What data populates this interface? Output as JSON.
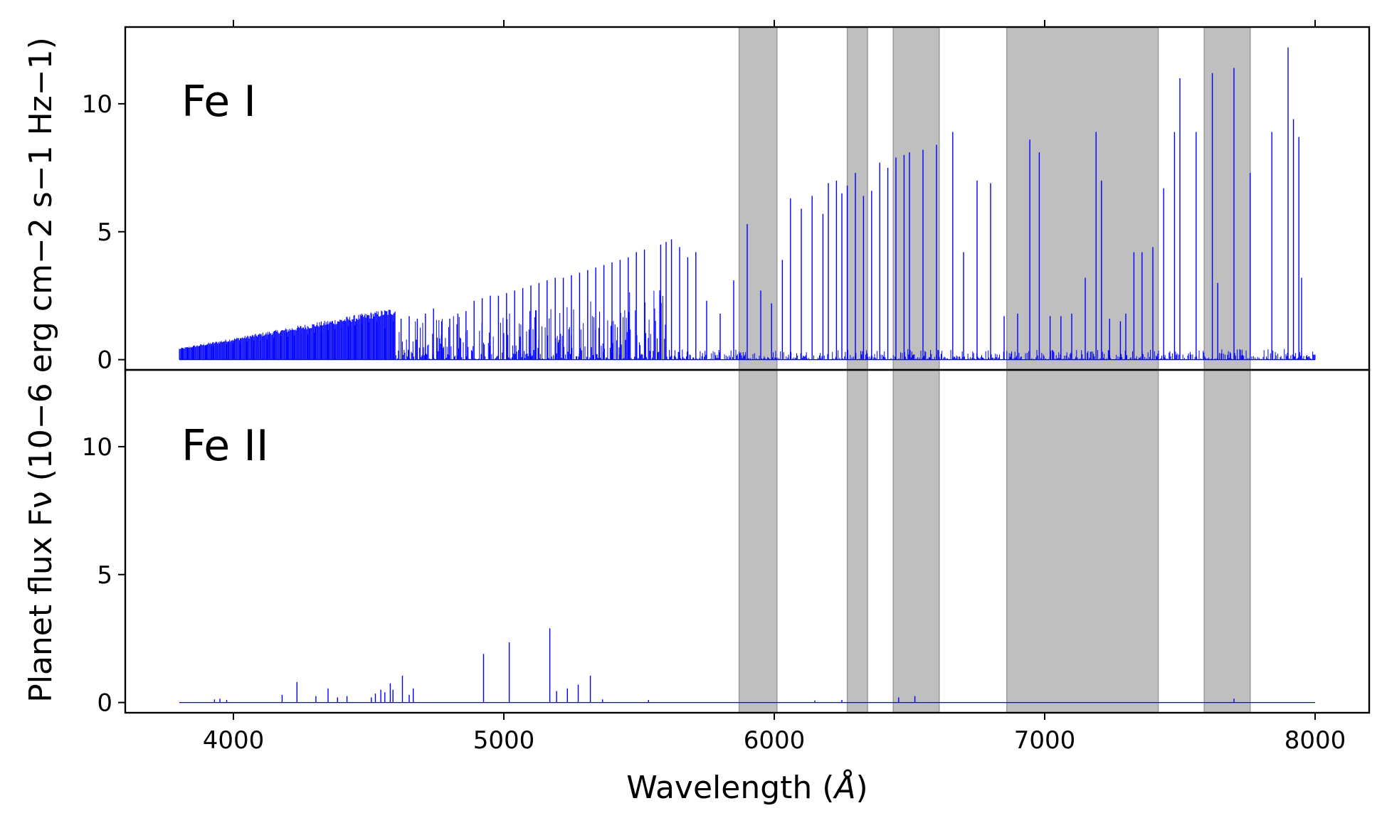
{
  "chart_data": {
    "type": "line",
    "title": "",
    "shared_x": true,
    "xlabel": "Wavelength (Å)",
    "xlabel_parts": {
      "text": "Wavelength (",
      "symbol": "Å",
      "close": ")"
    },
    "ylabel": "Planet flux Fν (10−6 erg cm−2 s−1 Hz−1)",
    "xlim": [
      3600,
      8200
    ],
    "ylim": [
      -0.4,
      13.0
    ],
    "xticks": [
      4000,
      5000,
      6000,
      7000,
      8000
    ],
    "xtick_labels": [
      "4000",
      "5000",
      "6000",
      "7000",
      "8000"
    ],
    "yticks": [
      0,
      5,
      10
    ],
    "ytick_labels": [
      "0",
      "5",
      "10"
    ],
    "line_color": "#0000ff",
    "band_color": "#bfbfbf",
    "shaded_bands": [
      [
        5870,
        6010
      ],
      [
        6270,
        6345
      ],
      [
        6440,
        6610
      ],
      [
        6860,
        7420
      ],
      [
        7590,
        7760
      ]
    ],
    "panels": [
      {
        "label": "Fe I",
        "x_range": [
          3800,
          8000
        ],
        "peaks": [
          [
            3810,
            0.45
          ],
          [
            3830,
            0.45
          ],
          [
            3850,
            0.5
          ],
          [
            3875,
            0.5
          ],
          [
            3900,
            0.55
          ],
          [
            3925,
            0.55
          ],
          [
            3950,
            0.6
          ],
          [
            3975,
            0.6
          ],
          [
            4000,
            0.65
          ],
          [
            4025,
            0.65
          ],
          [
            4050,
            0.7
          ],
          [
            4075,
            0.75
          ],
          [
            4100,
            0.75
          ],
          [
            4125,
            0.8
          ],
          [
            4150,
            0.85
          ],
          [
            4175,
            0.9
          ],
          [
            4200,
            0.9
          ],
          [
            4225,
            0.95
          ],
          [
            4250,
            1.0
          ],
          [
            4275,
            1.0
          ],
          [
            4300,
            1.05
          ],
          [
            4325,
            1.1
          ],
          [
            4350,
            1.15
          ],
          [
            4375,
            1.2
          ],
          [
            4400,
            1.25
          ],
          [
            4425,
            1.3
          ],
          [
            4450,
            1.35
          ],
          [
            4475,
            1.4
          ],
          [
            4500,
            1.45
          ],
          [
            4530,
            1.5
          ],
          [
            4560,
            1.2
          ],
          [
            4590,
            1.5
          ],
          [
            4620,
            1.6
          ],
          [
            4650,
            1.7
          ],
          [
            4680,
            1.6
          ],
          [
            4710,
            1.8
          ],
          [
            4740,
            2.0
          ],
          [
            4770,
            1.5
          ],
          [
            4800,
            1.6
          ],
          [
            4830,
            1.8
          ],
          [
            4860,
            1.9
          ],
          [
            4890,
            2.3
          ],
          [
            4920,
            2.4
          ],
          [
            4950,
            2.5
          ],
          [
            4980,
            2.5
          ],
          [
            5010,
            2.6
          ],
          [
            5040,
            2.7
          ],
          [
            5070,
            2.8
          ],
          [
            5100,
            2.9
          ],
          [
            5130,
            3.0
          ],
          [
            5160,
            3.1
          ],
          [
            5190,
            3.2
          ],
          [
            5220,
            3.2
          ],
          [
            5250,
            3.3
          ],
          [
            5280,
            3.4
          ],
          [
            5310,
            3.5
          ],
          [
            5340,
            3.6
          ],
          [
            5370,
            3.7
          ],
          [
            5400,
            3.8
          ],
          [
            5430,
            3.9
          ],
          [
            5460,
            4.0
          ],
          [
            5490,
            4.2
          ],
          [
            5520,
            4.3
          ],
          [
            5580,
            4.5
          ],
          [
            5600,
            4.6
          ],
          [
            5620,
            4.7
          ],
          [
            5650,
            4.4
          ],
          [
            5680,
            4.0
          ],
          [
            5710,
            4.2
          ],
          [
            5750,
            2.3
          ],
          [
            5800,
            1.8
          ],
          [
            5850,
            3.1
          ],
          [
            5900,
            5.3
          ],
          [
            5950,
            2.7
          ],
          [
            5990,
            2.2
          ],
          [
            6030,
            3.9
          ],
          [
            6060,
            6.3
          ],
          [
            6100,
            5.9
          ],
          [
            6140,
            6.4
          ],
          [
            6180,
            5.7
          ],
          [
            6200,
            6.9
          ],
          [
            6230,
            7.0
          ],
          [
            6250,
            6.5
          ],
          [
            6270,
            6.8
          ],
          [
            6300,
            7.3
          ],
          [
            6330,
            6.4
          ],
          [
            6360,
            6.6
          ],
          [
            6390,
            7.7
          ],
          [
            6420,
            7.5
          ],
          [
            6450,
            7.9
          ],
          [
            6480,
            8.0
          ],
          [
            6500,
            8.1
          ],
          [
            6550,
            8.2
          ],
          [
            6600,
            8.4
          ],
          [
            6660,
            8.9
          ],
          [
            6700,
            4.2
          ],
          [
            6750,
            7.0
          ],
          [
            6800,
            6.9
          ],
          [
            6850,
            1.7
          ],
          [
            6900,
            1.8
          ],
          [
            6945,
            8.6
          ],
          [
            6980,
            8.1
          ],
          [
            7020,
            1.7
          ],
          [
            7060,
            1.7
          ],
          [
            7100,
            1.8
          ],
          [
            7150,
            3.2
          ],
          [
            7190,
            8.9
          ],
          [
            7210,
            7.0
          ],
          [
            7240,
            1.6
          ],
          [
            7280,
            1.5
          ],
          [
            7300,
            1.8
          ],
          [
            7330,
            4.2
          ],
          [
            7360,
            4.2
          ],
          [
            7400,
            4.4
          ],
          [
            7440,
            6.7
          ],
          [
            7480,
            8.9
          ],
          [
            7500,
            11.0
          ],
          [
            7560,
            8.9
          ],
          [
            7620,
            11.2
          ],
          [
            7640,
            3.0
          ],
          [
            7700,
            11.4
          ],
          [
            7760,
            7.3
          ],
          [
            7840,
            8.9
          ],
          [
            7900,
            12.2
          ],
          [
            7920,
            9.4
          ],
          [
            7940,
            8.7
          ],
          [
            7950,
            3.2
          ]
        ]
      },
      {
        "label": "Fe II",
        "x_range": [
          3800,
          8000
        ],
        "peaks": [
          [
            3930,
            0.12
          ],
          [
            3950,
            0.15
          ],
          [
            3975,
            0.1
          ],
          [
            4180,
            0.3
          ],
          [
            4235,
            0.8
          ],
          [
            4305,
            0.25
          ],
          [
            4350,
            0.55
          ],
          [
            4385,
            0.2
          ],
          [
            4420,
            0.25
          ],
          [
            4510,
            0.2
          ],
          [
            4525,
            0.35
          ],
          [
            4545,
            0.5
          ],
          [
            4560,
            0.4
          ],
          [
            4580,
            0.75
          ],
          [
            4590,
            0.5
          ],
          [
            4625,
            1.05
          ],
          [
            4650,
            0.3
          ],
          [
            4665,
            0.55
          ],
          [
            4925,
            1.9
          ],
          [
            5020,
            2.35
          ],
          [
            5170,
            2.9
          ],
          [
            5195,
            0.45
          ],
          [
            5235,
            0.55
          ],
          [
            5275,
            0.7
          ],
          [
            5320,
            1.05
          ],
          [
            5365,
            0.12
          ],
          [
            5535,
            0.1
          ],
          [
            6150,
            0.08
          ],
          [
            6250,
            0.1
          ],
          [
            6460,
            0.2
          ],
          [
            6520,
            0.25
          ],
          [
            7700,
            0.15
          ]
        ]
      }
    ]
  }
}
